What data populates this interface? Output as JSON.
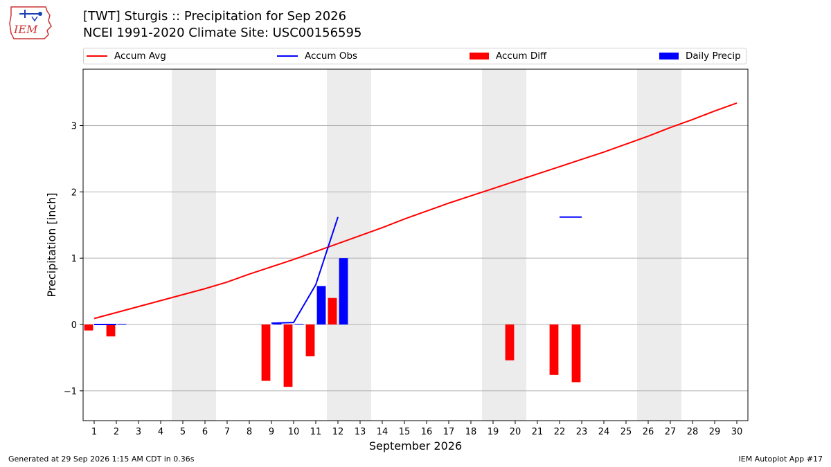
{
  "logo": {
    "text": "IEM",
    "icon": "iem-iowa-logo-icon",
    "color": "#cc3333"
  },
  "header": {
    "title_line1": "[TWT] Sturgis :: Precipitation for Sep 2026",
    "title_line2": "NCEI 1991-2020 Climate Site: USC00156595"
  },
  "legend": {
    "placement": "top, horizontal above plot",
    "items": [
      {
        "label": "Accum Avg",
        "kind": "line",
        "color": "#ff0000"
      },
      {
        "label": "Accum Obs",
        "kind": "line",
        "color": "#0000ff"
      },
      {
        "label": "Accum Diff",
        "kind": "bar",
        "color": "#ff0000"
      },
      {
        "label": "Daily Precip",
        "kind": "bar",
        "color": "#0000ff"
      }
    ]
  },
  "footer": {
    "left": "Generated at 29 Sep 2026 1:15 AM CDT in 0.36s",
    "right": "IEM Autoplot App #17"
  },
  "chart_data": {
    "type": "bar",
    "title": "[TWT] Sturgis :: Precipitation for Sep 2026",
    "subtitle": "NCEI 1991-2020 Climate Site: USC00156595",
    "xlabel": "September 2026",
    "ylabel": "Precipitation [inch]",
    "xlim": [
      0.5,
      30.5
    ],
    "ylim": [
      -1.45,
      3.85
    ],
    "grid": "horizontal",
    "x_ticks": [
      "1",
      "2",
      "3",
      "4",
      "5",
      "6",
      "7",
      "8",
      "9",
      "10",
      "11",
      "12",
      "13",
      "14",
      "15",
      "16",
      "17",
      "18",
      "19",
      "20",
      "21",
      "22",
      "23",
      "24",
      "25",
      "26",
      "27",
      "28",
      "29",
      "30"
    ],
    "y_ticks": [
      -1,
      0,
      1,
      2,
      3
    ],
    "y_tick_labels": [
      "−1",
      "0",
      "1",
      "2",
      "3"
    ],
    "weekend_shading": [
      [
        5,
        6
      ],
      [
        12,
        13
      ],
      [
        19,
        20
      ],
      [
        26,
        27
      ]
    ],
    "shading_color": "#ececec",
    "series": [
      {
        "name": "Accum Avg",
        "kind": "line",
        "color": "#ff0000",
        "x": [
          1,
          2,
          3,
          4,
          5,
          6,
          7,
          8,
          9,
          10,
          11,
          12,
          13,
          14,
          15,
          16,
          17,
          18,
          19,
          20,
          21,
          22,
          23,
          24,
          25,
          26,
          27,
          28,
          29,
          30
        ],
        "values": [
          0.09,
          0.18,
          0.27,
          0.36,
          0.45,
          0.54,
          0.64,
          0.76,
          0.87,
          0.98,
          1.1,
          1.22,
          1.34,
          1.46,
          1.59,
          1.71,
          1.83,
          1.94,
          2.05,
          2.16,
          2.27,
          2.38,
          2.49,
          2.6,
          2.72,
          2.84,
          2.97,
          3.09,
          3.22,
          3.34
        ]
      },
      {
        "name": "Accum Obs",
        "kind": "line",
        "color": "#0000ff",
        "segments": [
          {
            "x": [
              1,
              2
            ],
            "values": [
              0.0,
              0.0
            ]
          },
          {
            "x": [
              9,
              10,
              11,
              12
            ],
            "values": [
              0.02,
              0.03,
              0.6,
              1.62
            ]
          },
          {
            "x": [
              22,
              23
            ],
            "values": [
              1.62,
              1.62
            ]
          }
        ]
      },
      {
        "name": "Accum Diff",
        "kind": "bar",
        "color": "#ff0000",
        "offset": -0.25,
        "x": [
          1,
          2,
          9,
          10,
          11,
          12,
          20,
          22,
          23
        ],
        "values": [
          -0.09,
          -0.18,
          -0.85,
          -0.94,
          -0.48,
          0.4,
          -0.54,
          -0.76,
          -0.87
        ]
      },
      {
        "name": "Daily Precip",
        "kind": "bar",
        "color": "#0000ff",
        "offset": 0.25,
        "x": [
          1,
          2,
          9,
          10,
          11,
          12
        ],
        "values": [
          0.01,
          0.01,
          0.02,
          0.01,
          0.58,
          1.0
        ]
      }
    ]
  }
}
